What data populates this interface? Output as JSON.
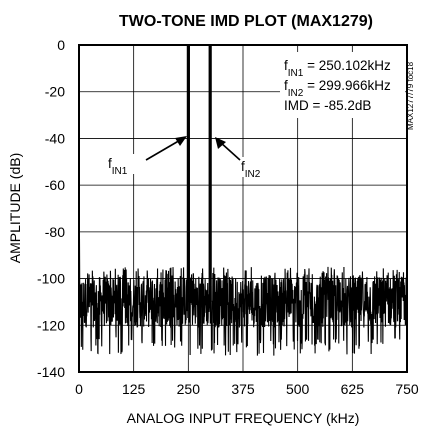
{
  "chart_data": {
    "type": "line",
    "title": "TWO-TONE IMD PLOT (MAX1279)",
    "xlabel": "ANALOG INPUT FREQUENCY (kHz)",
    "ylabel": "AMPLITUDE (dB)",
    "xlim": [
      0,
      750
    ],
    "ylim": [
      -140,
      0
    ],
    "x_ticks": [
      "0",
      "125",
      "250",
      "375",
      "500",
      "625",
      "750"
    ],
    "y_ticks": [
      "0",
      "-20",
      "-40",
      "-60",
      "-80",
      "-100",
      "-120",
      "-140"
    ],
    "grid": true,
    "tones": [
      {
        "x": 250.102,
        "y": 0,
        "label_main": "f",
        "label_sub": "IN1"
      },
      {
        "x": 299.966,
        "y": 0,
        "label_main": "f",
        "label_sub": "IN2"
      }
    ],
    "noise_floor": {
      "top_db": -95,
      "typical_db": -110,
      "bottom_db": -133,
      "dc_spike_db": -83
    },
    "annotations": {
      "fin1": {
        "main": "f",
        "sub": "IN1",
        "eq": " = 250.102kHz"
      },
      "fin2": {
        "main": "f",
        "sub": "IN2",
        "eq": " = 299.966kHz"
      },
      "imd": "IMD = -85.2dB"
    },
    "side_label": "MAX1277/79 toc18"
  }
}
